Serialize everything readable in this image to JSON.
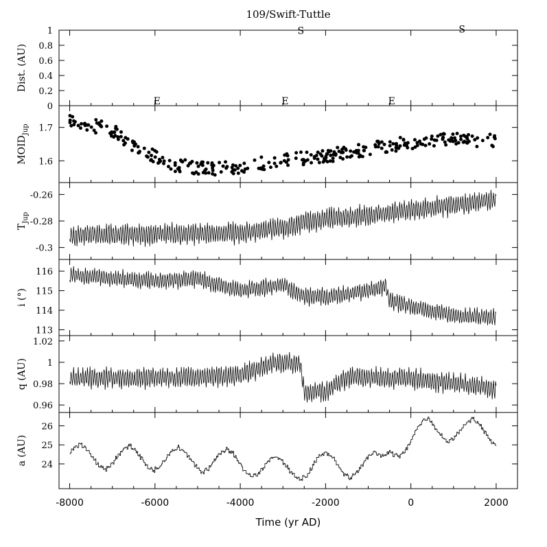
{
  "title": "109/Swift-Tuttle",
  "xlabel": "Time (yr AD)",
  "x_ticks": [
    "-8000",
    "-6000",
    "-4000",
    "-2000",
    "0",
    "2000"
  ],
  "chart_data": [
    {
      "type": "scatter",
      "panel": "distance",
      "ylabel": "Dist. (AU)",
      "xlim": [
        -8250,
        2500
      ],
      "ylim": [
        0,
        1
      ],
      "yticks": [
        "0",
        "0.2",
        "0.4",
        "0.6",
        "0.8",
        "1"
      ],
      "annotations": [
        {
          "text": "E",
          "x": -5950,
          "y": 0.0
        },
        {
          "text": "S",
          "x": -2580,
          "y": 0.93
        },
        {
          "text": "E",
          "x": -2950,
          "y": 0.0
        },
        {
          "text": "E",
          "x": -450,
          "y": 0.0
        },
        {
          "text": "S",
          "x": 1200,
          "y": 0.95
        }
      ],
      "values": []
    },
    {
      "type": "scatter",
      "panel": "moid",
      "ylabel": "MOID",
      "ylabel_sub": "Jup",
      "xlim": [
        -8250,
        2500
      ],
      "ylim": [
        1.535,
        1.765
      ],
      "yticks": [
        "1.6",
        "1.7"
      ],
      "trend": [
        [
          -8000,
          1.725
        ],
        [
          -7000,
          1.69
        ],
        [
          -6300,
          1.63
        ],
        [
          -5500,
          1.585
        ],
        [
          -4500,
          1.575
        ],
        [
          -3000,
          1.6
        ],
        [
          -2000,
          1.615
        ],
        [
          -1000,
          1.635
        ],
        [
          0,
          1.655
        ],
        [
          1000,
          1.665
        ],
        [
          2000,
          1.66
        ]
      ],
      "n_points": 330,
      "scatter_amp": 0.02
    },
    {
      "type": "line",
      "panel": "tisserand",
      "ylabel": "T",
      "ylabel_sub": "Jup",
      "xlim": [
        -8250,
        2500
      ],
      "ylim": [
        -0.309,
        -0.251
      ],
      "yticks": [
        "-0.26",
        "-0.28",
        "-0.3"
      ],
      "trend": [
        [
          -8000,
          -0.291
        ],
        [
          -6000,
          -0.29
        ],
        [
          -4000,
          -0.289
        ],
        [
          -3000,
          -0.285
        ],
        [
          -2000,
          -0.278
        ],
        [
          -1000,
          -0.276
        ],
        [
          0,
          -0.272
        ],
        [
          1000,
          -0.268
        ],
        [
          2000,
          -0.264
        ]
      ],
      "osc_amp": 0.009,
      "n_points": 650
    },
    {
      "type": "line",
      "panel": "inclination",
      "ylabel": "i (°)",
      "xlim": [
        -8250,
        2500
      ],
      "ylim": [
        112.7,
        116.6
      ],
      "yticks": [
        "113",
        "114",
        "115",
        "116"
      ],
      "trend": [
        [
          -8000,
          115.8
        ],
        [
          -6000,
          115.5
        ],
        [
          -5000,
          115.6
        ],
        [
          -4000,
          115.0
        ],
        [
          -3000,
          115.3
        ],
        [
          -2500,
          114.7
        ],
        [
          -2000,
          114.7
        ],
        [
          -1500,
          114.8
        ],
        [
          -600,
          115.2
        ],
        [
          -500,
          114.5
        ],
        [
          0,
          114.2
        ],
        [
          1000,
          113.7
        ],
        [
          2000,
          113.6
        ]
      ],
      "osc_amp": 0.5,
      "n_points": 650
    },
    {
      "type": "line",
      "panel": "perihelion",
      "ylabel": "q (AU)",
      "xlim": [
        -8250,
        2500
      ],
      "ylim": [
        0.953,
        1.025
      ],
      "yticks": [
        "0.96",
        "0.98",
        "1",
        "1.02"
      ],
      "trend": [
        [
          -8000,
          0.985
        ],
        [
          -5000,
          0.986
        ],
        [
          -4000,
          0.988
        ],
        [
          -3200,
          1.0
        ],
        [
          -2600,
          1.0
        ],
        [
          -2500,
          0.972
        ],
        [
          -2000,
          0.972
        ],
        [
          -1500,
          0.986
        ],
        [
          0,
          0.985
        ],
        [
          1000,
          0.98
        ],
        [
          2000,
          0.975
        ]
      ],
      "osc_amp": 0.011,
      "n_points": 650
    },
    {
      "type": "line",
      "panel": "semimajor",
      "ylabel": "a (AU)",
      "xlim": [
        -8250,
        2500
      ],
      "ylim": [
        22.7,
        26.7
      ],
      "yticks": [
        "24",
        "25",
        "26"
      ],
      "trend": [
        [
          -8000,
          24.4
        ],
        [
          -4500,
          24.2
        ],
        [
          -3000,
          23.7
        ],
        [
          -2000,
          24.0
        ],
        [
          -1500,
          23.9
        ],
        [
          -700,
          24.0
        ],
        [
          -500,
          24.9
        ],
        [
          0,
          25.2
        ],
        [
          400,
          25.9
        ],
        [
          1000,
          25.8
        ],
        [
          2000,
          25.6
        ]
      ],
      "osc_amp": 0.85,
      "period": 1150,
      "n_points": 520
    }
  ]
}
